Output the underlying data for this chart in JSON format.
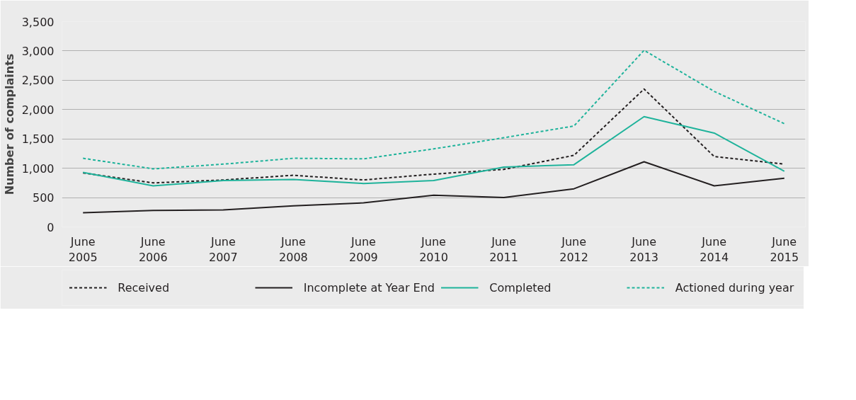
{
  "chart_data": {
    "type": "line",
    "ylabel": "Number of complaints",
    "categories": [
      "June\n2005",
      "June\n2006",
      "June\n2007",
      "June\n2008",
      "June\n2009",
      "June\n2010",
      "June\n2011",
      "June\n2012",
      "June\n2013",
      "June\n2014",
      "June\n2015"
    ],
    "ylim": [
      0,
      3500
    ],
    "yticks": [
      {
        "value": 0,
        "label": "0"
      },
      {
        "value": 500,
        "label": "500"
      },
      {
        "value": 1000,
        "label": "1,000"
      },
      {
        "value": 1500,
        "label": "1,500"
      },
      {
        "value": 2000,
        "label": "2,000"
      },
      {
        "value": 2500,
        "label": "2,500"
      },
      {
        "value": 3000,
        "label": "3,000"
      },
      {
        "value": 3500,
        "label": "3,500"
      }
    ],
    "grid": "y",
    "legend": "bottom",
    "series": [
      {
        "name": "Received",
        "color": "#231f20",
        "line_style": "dashed",
        "values": [
          920,
          750,
          800,
          880,
          800,
          900,
          980,
          1220,
          2350,
          1200,
          1070
        ]
      },
      {
        "name": "Incomplete at Year End",
        "color": "#231f20",
        "line_style": "solid",
        "values": [
          240,
          280,
          290,
          360,
          410,
          540,
          500,
          650,
          1110,
          700,
          830
        ]
      },
      {
        "name": "Completed",
        "color": "#1fb39b",
        "line_style": "solid",
        "values": [
          930,
          700,
          790,
          810,
          740,
          790,
          1020,
          1060,
          1880,
          1600,
          950
        ]
      },
      {
        "name": "Actioned during year",
        "color": "#1fb39b",
        "line_style": "dashed",
        "values": [
          1170,
          990,
          1070,
          1170,
          1160,
          1330,
          1520,
          1720,
          3010,
          2310,
          1760
        ]
      }
    ]
  }
}
